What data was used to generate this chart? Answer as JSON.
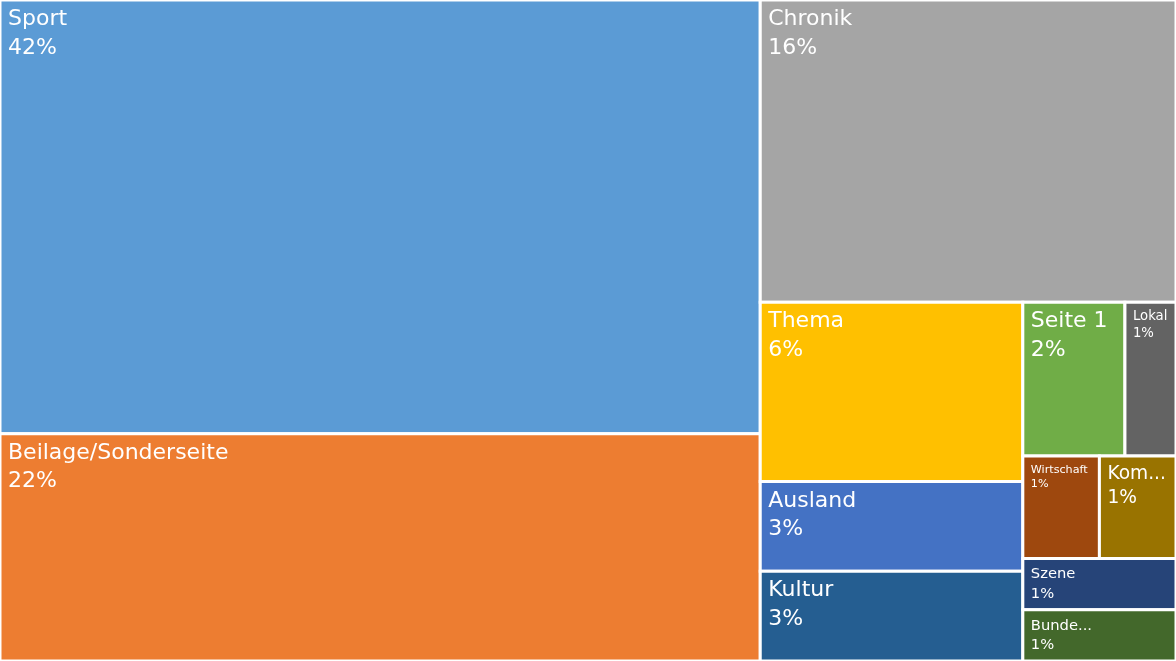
{
  "chart_data": {
    "type": "other",
    "categories": [
      "Sport",
      "Beilage/Sonderseite",
      "Chronik",
      "Thema",
      "Ausland",
      "Kultur",
      "Seite 1",
      "Lokal",
      "Wirtschaft",
      "Kom...",
      "Szene",
      "Bunde..."
    ],
    "values": [
      42,
      22,
      16,
      6,
      3,
      3,
      2,
      1,
      1,
      1,
      1,
      1
    ],
    "value_labels": [
      "42%",
      "22%",
      "16%",
      "6%",
      "3%",
      "3%",
      "2%",
      "1%",
      "1%",
      "1%",
      "1%",
      "1%"
    ],
    "colors": [
      "#5b9bd5",
      "#ed7d31",
      "#a5a5a5",
      "#ffc000",
      "#4472c4",
      "#255e91",
      "#70ad47",
      "#636363",
      "#9e480e",
      "#997300",
      "#264478",
      "#43682b"
    ]
  }
}
